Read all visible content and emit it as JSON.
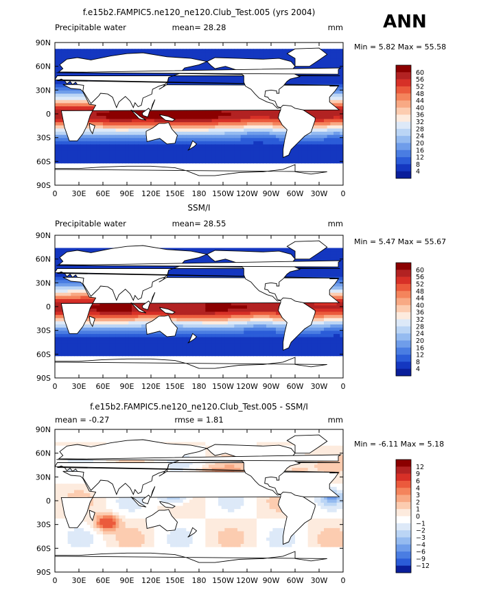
{
  "season_label": "ANN",
  "chart_data": [
    {
      "type": "heatmap",
      "title": "f.e15b2.FAMPIC5.ne120_ne120.Club_Test.005 (yrs 2004)",
      "left_label": "Precipitable water",
      "center_label": "mean=  28.28",
      "units": "mm",
      "minmax": "Min =    5.82  Max =    55.58",
      "min": 5.82,
      "max": 55.58,
      "mean": 28.28,
      "x_ticks": [
        "0",
        "30E",
        "60E",
        "90E",
        "120E",
        "150E",
        "180",
        "150W",
        "120W",
        "90W",
        "60W",
        "30W",
        "0"
      ],
      "y_ticks": [
        "90N",
        "60N",
        "30N",
        "0",
        "30S",
        "60S",
        "90S"
      ],
      "colorbar": {
        "levels": [
          "60",
          "56",
          "52",
          "48",
          "44",
          "40",
          "36",
          "32",
          "28",
          "24",
          "20",
          "16",
          "12",
          "8",
          "4"
        ],
        "colors": [
          "#8B0000",
          "#B22222",
          "#D73027",
          "#EB5A3C",
          "#F4845C",
          "#F8A984",
          "#FCCCB0",
          "#FDEBDE",
          "#DDE9F8",
          "#BBD5F5",
          "#95BBF0",
          "#6F9DEA",
          "#4A7DE2",
          "#2B5CD8",
          "#1437C0",
          "#0A1E9A"
        ]
      }
    },
    {
      "type": "heatmap",
      "title": "SSM/I",
      "left_label": "Precipitable water",
      "center_label": "mean=  28.55",
      "units": "mm",
      "minmax": "Min =    5.47  Max =    55.67",
      "min": 5.47,
      "max": 55.67,
      "mean": 28.55,
      "x_ticks": [
        "0",
        "30E",
        "60E",
        "90E",
        "120E",
        "150E",
        "180",
        "150W",
        "120W",
        "90W",
        "60W",
        "30W",
        "0"
      ],
      "y_ticks": [
        "90N",
        "60N",
        "30N",
        "0",
        "30S",
        "60S",
        "90S"
      ],
      "colorbar": {
        "levels": [
          "60",
          "56",
          "52",
          "48",
          "44",
          "40",
          "36",
          "32",
          "28",
          "24",
          "20",
          "16",
          "12",
          "8",
          "4"
        ],
        "colors": [
          "#8B0000",
          "#B22222",
          "#D73027",
          "#EB5A3C",
          "#F4845C",
          "#F8A984",
          "#FCCCB0",
          "#FDEBDE",
          "#DDE9F8",
          "#BBD5F5",
          "#95BBF0",
          "#6F9DEA",
          "#4A7DE2",
          "#2B5CD8",
          "#1437C0",
          "#0A1E9A"
        ]
      }
    },
    {
      "type": "heatmap",
      "title": "f.e15b2.FAMPIC5.ne120_ne120.Club_Test.005 - SSM/I",
      "left_label": "mean =   -0.27",
      "center_label": "rmse =    1.81",
      "units": "mm",
      "minmax": "Min =   -6.11  Max =     5.18",
      "min": -6.11,
      "max": 5.18,
      "mean": -0.27,
      "rmse": 1.81,
      "x_ticks": [
        "0",
        "30E",
        "60E",
        "90E",
        "120E",
        "150E",
        "180",
        "150W",
        "120W",
        "90W",
        "60W",
        "30W",
        "0"
      ],
      "y_ticks": [
        "90N",
        "60N",
        "30N",
        "0",
        "30S",
        "60S",
        "90S"
      ],
      "colorbar": {
        "levels": [
          "12",
          "9",
          "6",
          "4",
          "3",
          "2",
          "1",
          "0",
          "−1",
          "−2",
          "−3",
          "−4",
          "−6",
          "−9",
          "−12"
        ],
        "colors": [
          "#8B0000",
          "#B22222",
          "#D73027",
          "#EB5A3C",
          "#F4845C",
          "#F8A984",
          "#FCCCB0",
          "#FDEBDE",
          "#FFFFFF",
          "#DDE9F8",
          "#BBD5F5",
          "#95BBF0",
          "#6F9DEA",
          "#4A7DE2",
          "#2B5CD8",
          "#0A1E9A"
        ]
      }
    }
  ]
}
